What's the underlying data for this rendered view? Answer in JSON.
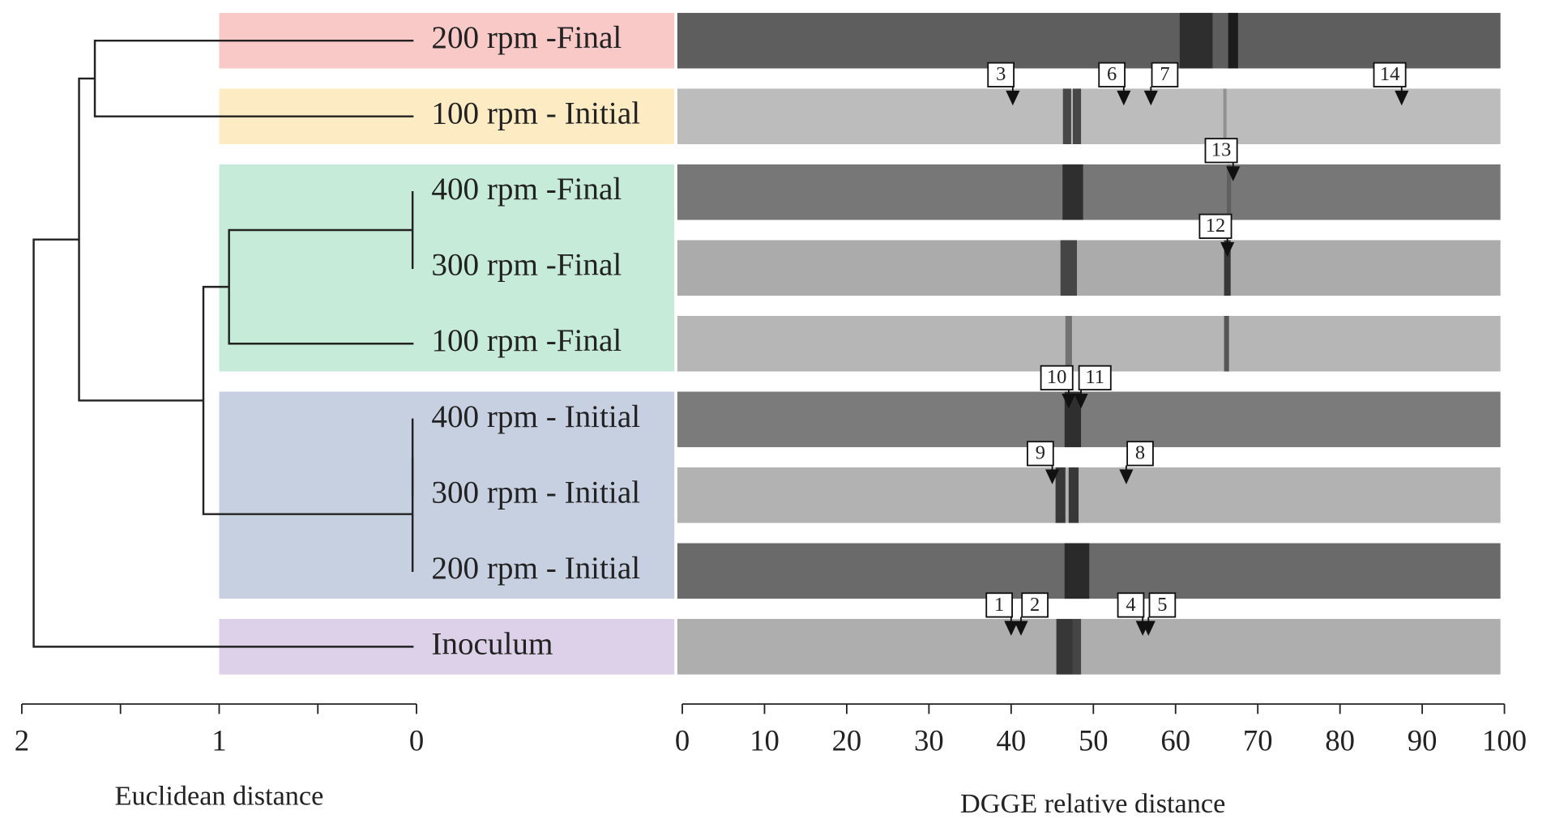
{
  "chart_data": [
    {
      "type": "dendrogram",
      "xlabel": "Euclidean distance",
      "xlim": [
        2,
        0
      ],
      "xticks": [
        2,
        1,
        0
      ],
      "xminorticks": [
        1.5,
        0.5
      ],
      "leaves": [
        "200 rpm -Final",
        "100 rpm - Initial",
        "400 rpm -Final",
        "300 rpm -Final",
        "100 rpm -Final",
        "400 rpm - Initial",
        "300 rpm - Initial",
        "200 rpm - Initial",
        "Inoculum"
      ],
      "group_sizes": [
        1,
        1,
        3,
        3,
        1
      ],
      "group_colors": [
        "#f9c9c8",
        "#fdebc3",
        "#c6ecd9",
        "#c7d0e1",
        "#ddd0e9"
      ],
      "line_color": "#222222",
      "merges": [
        [
          2,
          3,
          0.02
        ],
        [
          9,
          4,
          0.95
        ],
        [
          5,
          6,
          0.02
        ],
        [
          11,
          7,
          0.02
        ],
        [
          10,
          12,
          1.08
        ],
        [
          0,
          1,
          1.63
        ],
        [
          14,
          13,
          1.71
        ],
        [
          15,
          8,
          1.94
        ]
      ]
    },
    {
      "type": "gel",
      "xlabel": "DGGE relative distance",
      "xlim": [
        0,
        100
      ],
      "xticks": [
        0,
        10,
        20,
        30,
        40,
        50,
        60,
        70,
        80,
        90,
        100
      ],
      "lanes": [
        {
          "color": "#5e5e5e",
          "bands": [
            {
              "x": 62.5,
              "width": 4,
              "color": "#262626"
            },
            {
              "x": 67,
              "width": 1.2,
              "color": "#111111"
            }
          ]
        },
        {
          "color": "#bcbcbc",
          "bands": [
            {
              "x": 46.8,
              "width": 1,
              "color": "#333333"
            },
            {
              "x": 48,
              "width": 1,
              "color": "#333333"
            },
            {
              "x": 66,
              "width": 0.4,
              "color": "#8a8a8a"
            }
          ]
        },
        {
          "color": "#777777",
          "bands": [
            {
              "x": 47.5,
              "width": 2.5,
              "color": "#222222"
            },
            {
              "x": 66.5,
              "width": 0.5,
              "color": "#5a5a5a"
            }
          ]
        },
        {
          "color": "#ababab",
          "bands": [
            {
              "x": 47,
              "width": 2,
              "color": "#333333"
            },
            {
              "x": 66.3,
              "width": 0.8,
              "color": "#222222"
            }
          ]
        },
        {
          "color": "#b6b6b6",
          "bands": [
            {
              "x": 47,
              "width": 0.8,
              "color": "#666666"
            },
            {
              "x": 66.2,
              "width": 0.6,
              "color": "#444444"
            }
          ]
        },
        {
          "color": "#7b7b7b",
          "bands": [
            {
              "x": 47.5,
              "width": 2,
              "color": "#222222"
            }
          ]
        },
        {
          "color": "#b2b2b2",
          "bands": [
            {
              "x": 46,
              "width": 1.2,
              "color": "#222222"
            },
            {
              "x": 47.6,
              "width": 1.2,
              "color": "#222222"
            }
          ]
        },
        {
          "color": "#6a6a6a",
          "bands": [
            {
              "x": 48,
              "width": 3,
              "color": "#1e1e1e"
            }
          ]
        },
        {
          "color": "#aeaeae",
          "bands": [
            {
              "x": 46.5,
              "width": 2,
              "color": "#222222"
            },
            {
              "x": 48,
              "width": 1,
              "color": "#333333"
            }
          ]
        }
      ],
      "markers": [
        {
          "label": "3",
          "x": 40.2,
          "lane": 1,
          "side": "left"
        },
        {
          "label": "6",
          "x": 53.7,
          "lane": 1,
          "side": "left"
        },
        {
          "label": "7",
          "x": 57,
          "lane": 1,
          "side": "right"
        },
        {
          "label": "14",
          "x": 87.5,
          "lane": 1,
          "side": "left"
        },
        {
          "label": "13",
          "x": 67,
          "lane": 2,
          "side": "left"
        },
        {
          "label": "12",
          "x": 66.3,
          "lane": 3,
          "side": "left"
        },
        {
          "label": "10",
          "x": 47,
          "lane": 5,
          "side": "left"
        },
        {
          "label": "11",
          "x": 48.5,
          "lane": 5,
          "side": "right"
        },
        {
          "label": "9",
          "x": 45,
          "lane": 6,
          "side": "left"
        },
        {
          "label": "8",
          "x": 54,
          "lane": 6,
          "side": "right"
        },
        {
          "label": "1",
          "x": 40,
          "lane": 8,
          "side": "left"
        },
        {
          "label": "2",
          "x": 41.2,
          "lane": 8,
          "side": "right"
        },
        {
          "label": "4",
          "x": 56,
          "lane": 8,
          "side": "left"
        },
        {
          "label": "5",
          "x": 56.7,
          "lane": 8,
          "side": "right"
        }
      ]
    }
  ]
}
